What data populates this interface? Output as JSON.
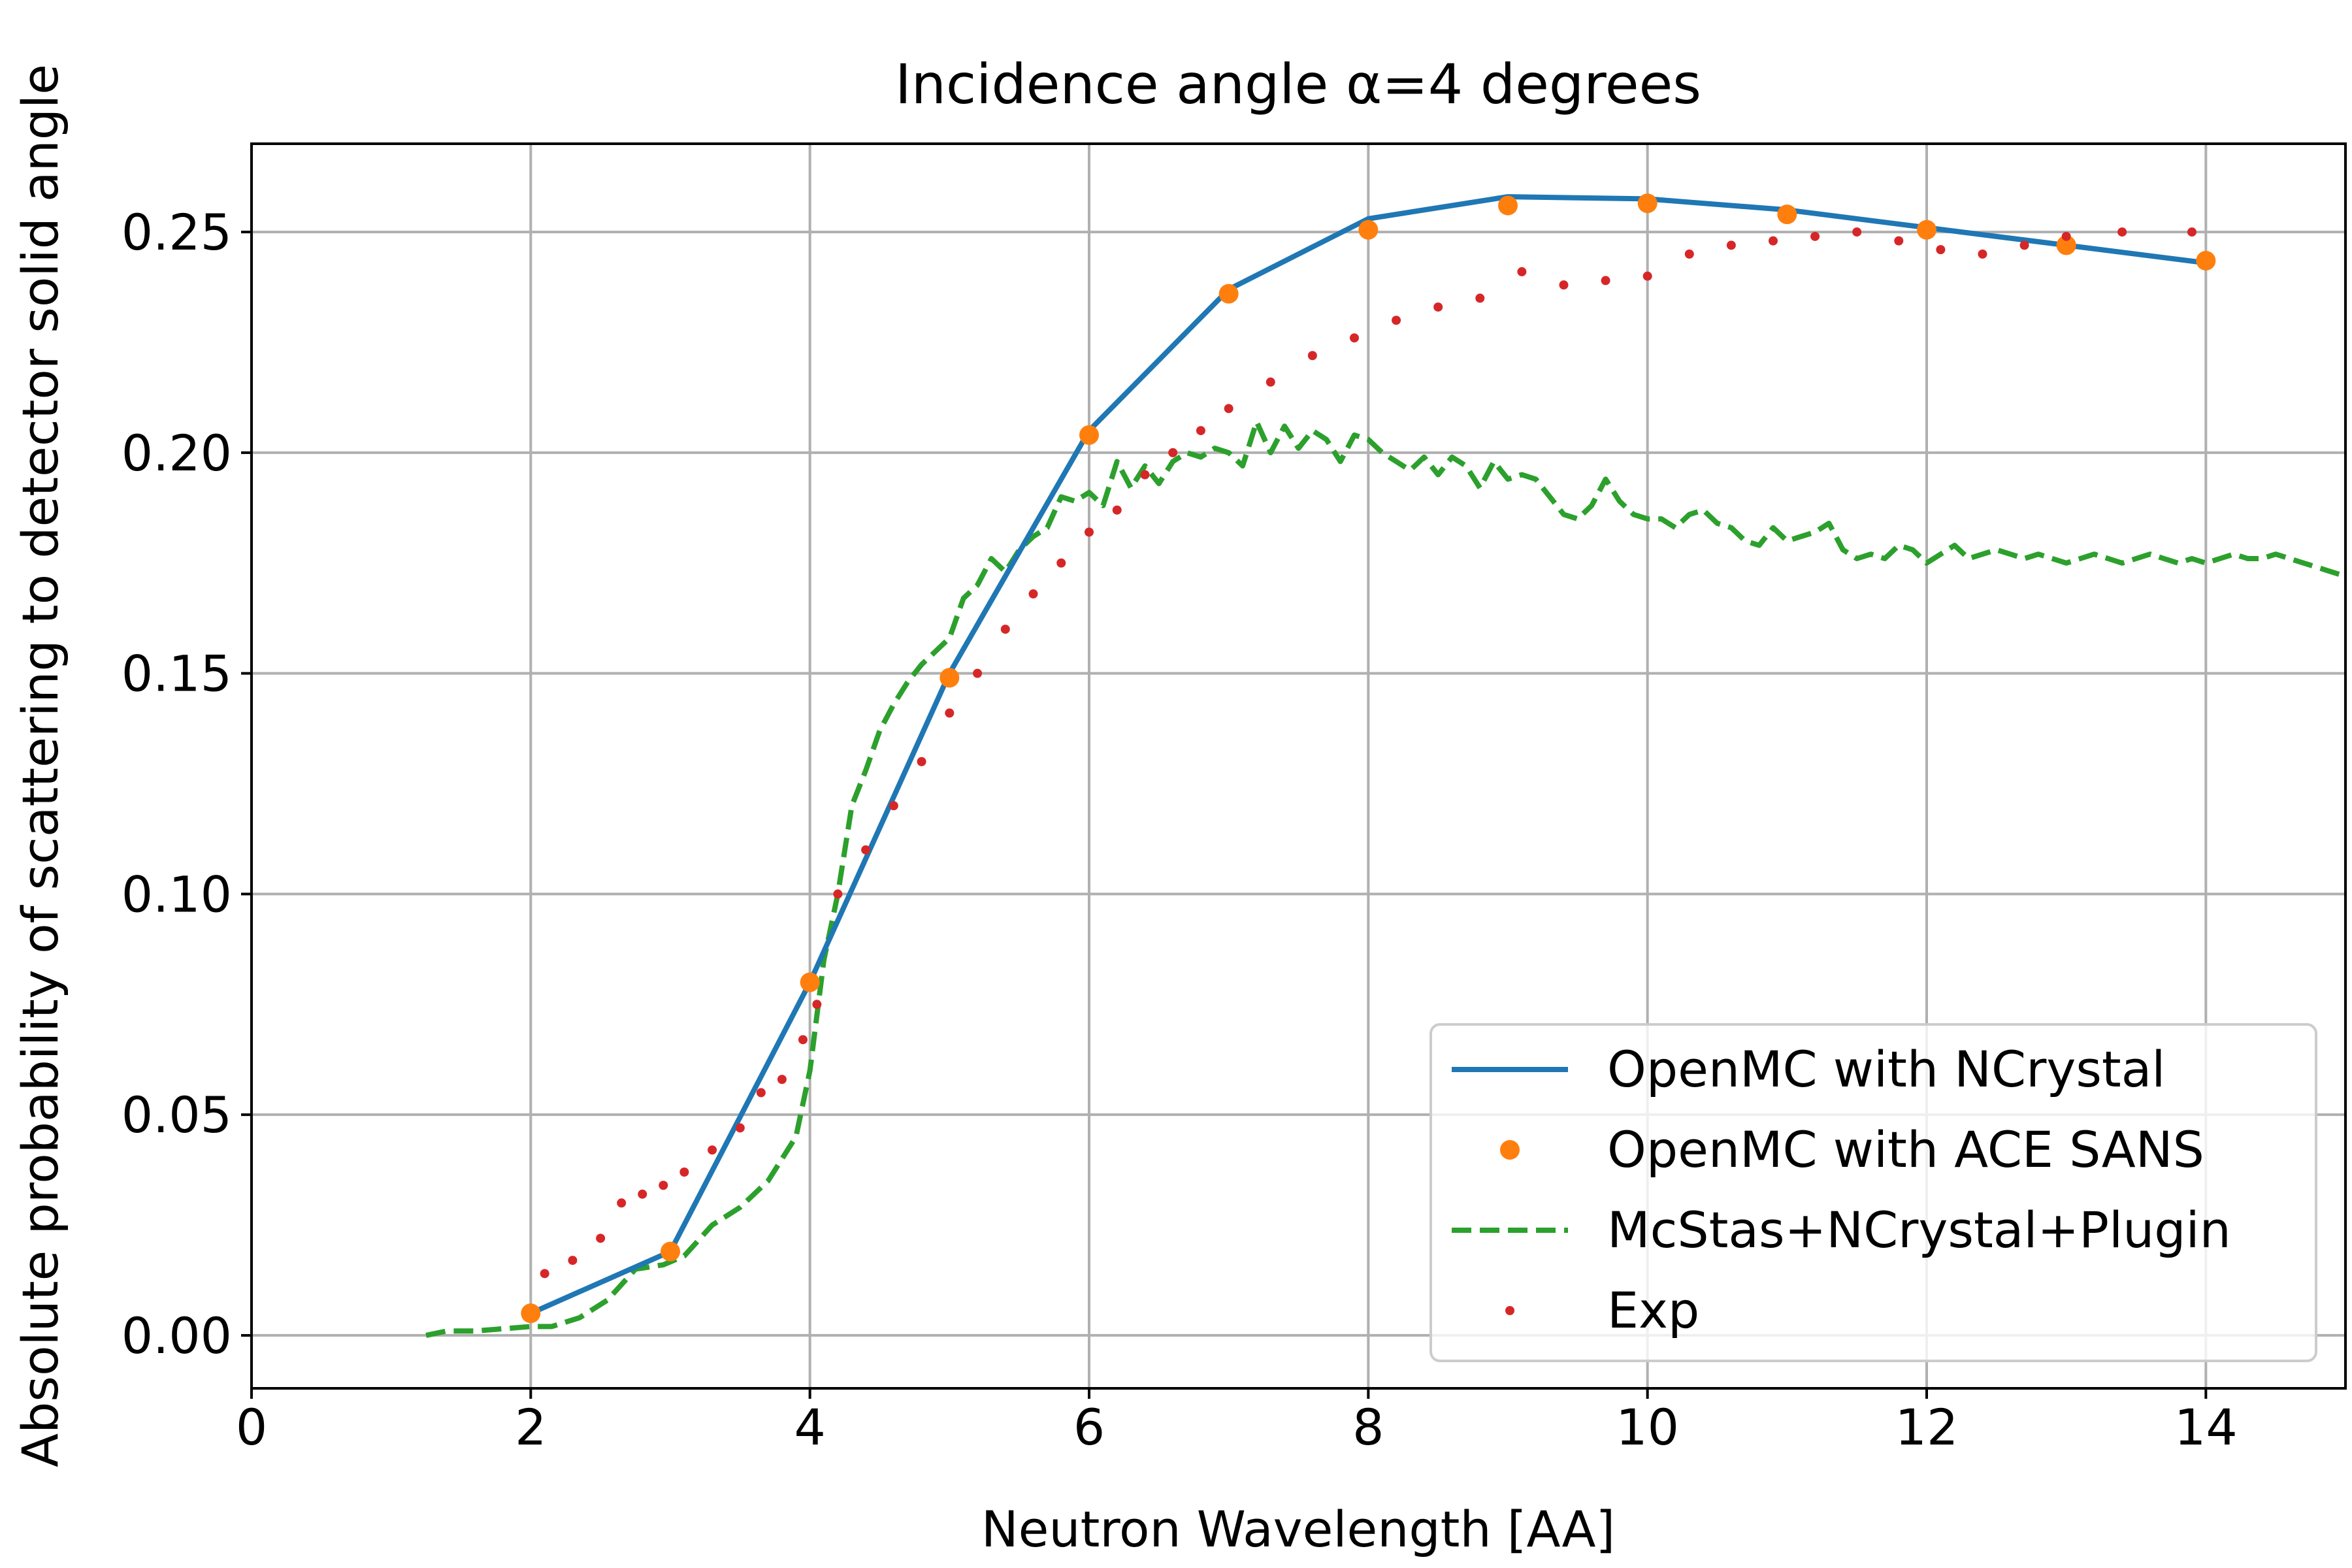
{
  "chart_data": {
    "type": "line",
    "title": "Incidence angle α=4 degrees",
    "xlabel": "Neutron Wavelength [AA]",
    "ylabel": "Absolute probability of scattering to detector solid angle",
    "xlim": [
      0,
      15
    ],
    "ylim": [
      -0.012,
      0.27
    ],
    "xticks": [
      0,
      2,
      4,
      6,
      8,
      10,
      12,
      14
    ],
    "xtick_labels": [
      "0",
      "2",
      "4",
      "6",
      "8",
      "10",
      "12",
      "14"
    ],
    "yticks": [
      0.0,
      0.05,
      0.1,
      0.15,
      0.2,
      0.25
    ],
    "ytick_labels": [
      "0.00",
      "0.05",
      "0.10",
      "0.15",
      "0.20",
      "0.25"
    ],
    "grid": true,
    "legend_position": "lower-right",
    "series": [
      {
        "name": "OpenMC with NCrystal",
        "style": "solid",
        "color": "#1f77b4",
        "x": [
          2,
          3,
          4,
          5,
          6,
          7,
          8,
          9,
          10,
          11,
          12,
          13,
          14
        ],
        "y": [
          0.005,
          0.019,
          0.08,
          0.15,
          0.205,
          0.237,
          0.253,
          0.258,
          0.2575,
          0.255,
          0.251,
          0.247,
          0.243
        ]
      },
      {
        "name": "OpenMC with ACE SANS",
        "style": "markers",
        "color": "#ff7f0e",
        "x": [
          2,
          3,
          4,
          5,
          6,
          7,
          8,
          9,
          10,
          11,
          12,
          13,
          14
        ],
        "y": [
          0.005,
          0.019,
          0.08,
          0.149,
          0.204,
          0.236,
          0.2505,
          0.256,
          0.2565,
          0.254,
          0.2505,
          0.247,
          0.2435
        ]
      },
      {
        "name": "McStas+NCrystal+Plugin",
        "style": "dashed",
        "color": "#2ca02c",
        "x": [
          1.25,
          1.4,
          1.6,
          1.8,
          2.0,
          2.15,
          2.35,
          2.55,
          2.75,
          2.95,
          3.1,
          3.3,
          3.5,
          3.7,
          3.9,
          4.0,
          4.1,
          4.2,
          4.3,
          4.4,
          4.5,
          4.6,
          4.7,
          4.8,
          4.9,
          5.0,
          5.1,
          5.2,
          5.3,
          5.4,
          5.5,
          5.6,
          5.7,
          5.8,
          5.9,
          6.0,
          6.1,
          6.2,
          6.3,
          6.4,
          6.5,
          6.6,
          6.7,
          6.8,
          6.9,
          7.0,
          7.1,
          7.2,
          7.3,
          7.4,
          7.5,
          7.6,
          7.7,
          7.8,
          7.9,
          8.0,
          8.1,
          8.2,
          8.3,
          8.4,
          8.5,
          8.6,
          8.7,
          8.8,
          8.9,
          9.0,
          9.1,
          9.2,
          9.3,
          9.4,
          9.5,
          9.6,
          9.7,
          9.8,
          9.9,
          10.0,
          10.1,
          10.2,
          10.3,
          10.4,
          10.5,
          10.6,
          10.7,
          10.8,
          10.9,
          11.0,
          11.1,
          11.2,
          11.3,
          11.4,
          11.5,
          11.6,
          11.7,
          11.8,
          11.9,
          12.0,
          12.1,
          12.2,
          12.3,
          12.4,
          12.5,
          12.6,
          12.7,
          12.8,
          12.9,
          13.0,
          13.1,
          13.2,
          13.3,
          13.4,
          13.5,
          13.6,
          13.7,
          13.8,
          13.9,
          14.0,
          14.1,
          14.2,
          14.3,
          14.4,
          14.5,
          14.6,
          14.7,
          14.8,
          14.9,
          15.0
        ],
        "y": [
          0.0,
          0.001,
          0.001,
          0.0015,
          0.002,
          0.002,
          0.004,
          0.008,
          0.015,
          0.016,
          0.018,
          0.025,
          0.029,
          0.035,
          0.045,
          0.06,
          0.085,
          0.1,
          0.12,
          0.128,
          0.137,
          0.143,
          0.148,
          0.152,
          0.155,
          0.158,
          0.167,
          0.17,
          0.176,
          0.173,
          0.178,
          0.181,
          0.183,
          0.19,
          0.189,
          0.191,
          0.188,
          0.198,
          0.192,
          0.197,
          0.193,
          0.198,
          0.2,
          0.199,
          0.201,
          0.2,
          0.197,
          0.207,
          0.2,
          0.206,
          0.201,
          0.205,
          0.203,
          0.198,
          0.204,
          0.203,
          0.2,
          0.198,
          0.196,
          0.199,
          0.195,
          0.199,
          0.197,
          0.192,
          0.198,
          0.194,
          0.195,
          0.194,
          0.19,
          0.186,
          0.185,
          0.188,
          0.194,
          0.189,
          0.186,
          0.185,
          0.185,
          0.183,
          0.186,
          0.187,
          0.184,
          0.183,
          0.18,
          0.179,
          0.183,
          0.18,
          0.181,
          0.182,
          0.184,
          0.178,
          0.176,
          0.177,
          0.176,
          0.179,
          0.178,
          0.175,
          0.177,
          0.179,
          0.176,
          0.177,
          0.178,
          0.177,
          0.176,
          0.177,
          0.176,
          0.175,
          0.176,
          0.177,
          0.176,
          0.175,
          0.176,
          0.177,
          0.176,
          0.175,
          0.176,
          0.175,
          0.176,
          0.177,
          0.176,
          0.176,
          0.177,
          0.176,
          0.175,
          0.174,
          0.173,
          0.172
        ]
      },
      {
        "name": "Exp",
        "style": "dotted",
        "color": "#d62728",
        "x": [
          2.1,
          2.3,
          2.5,
          2.65,
          2.8,
          2.95,
          3.1,
          3.3,
          3.5,
          3.65,
          3.8,
          3.95,
          4.05,
          4.2,
          4.4,
          4.6,
          4.8,
          5.0,
          5.2,
          5.4,
          5.6,
          5.8,
          6.0,
          6.2,
          6.4,
          6.6,
          6.8,
          7.0,
          7.3,
          7.6,
          7.9,
          8.2,
          8.5,
          8.8,
          9.1,
          9.4,
          9.7,
          10.0,
          10.3,
          10.6,
          10.9,
          11.2,
          11.5,
          11.8,
          12.1,
          12.4,
          12.7,
          13.0,
          13.4,
          13.9
        ],
        "y": [
          0.014,
          0.017,
          0.022,
          0.03,
          0.032,
          0.034,
          0.037,
          0.042,
          0.047,
          0.055,
          0.058,
          0.067,
          0.075,
          0.1,
          0.11,
          0.12,
          0.13,
          0.141,
          0.15,
          0.16,
          0.168,
          0.175,
          0.182,
          0.187,
          0.195,
          0.2,
          0.205,
          0.21,
          0.216,
          0.222,
          0.226,
          0.23,
          0.233,
          0.235,
          0.241,
          0.238,
          0.239,
          0.24,
          0.245,
          0.247,
          0.248,
          0.249,
          0.25,
          0.248,
          0.246,
          0.245,
          0.247,
          0.249,
          0.25,
          0.25
        ]
      }
    ]
  }
}
